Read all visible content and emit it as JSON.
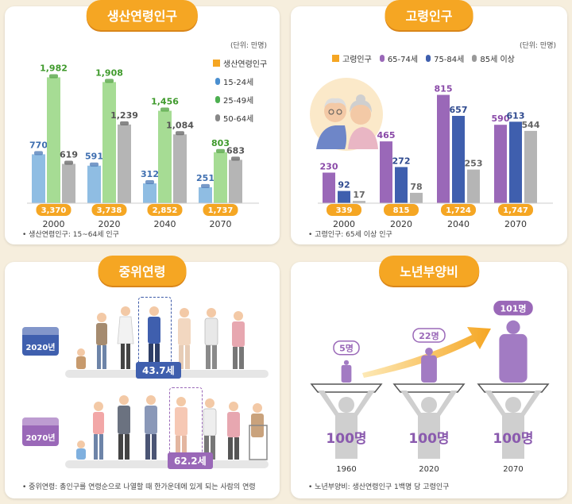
{
  "panels": {
    "working": {
      "title": "생산연령인구",
      "unit": "(단위: 만명)",
      "note": "• 생산연령인구: 15~64세 인구"
    },
    "elderly": {
      "title": "고령인구",
      "unit": "(단위: 만명)",
      "note": "• 고령인구: 65세 이상 인구"
    },
    "median": {
      "title": "중위연령",
      "note": "• 중위연령: 총인구를 연령순으로 나열할 때 한가운데에 있게 되는 사람의 연령",
      "rows": [
        {
          "year": "2020년",
          "age": "43.7세"
        },
        {
          "year": "2070년",
          "age": "62.2세"
        }
      ]
    },
    "dependency": {
      "title": "노년부양비",
      "note": "• 노년부양비: 생산연령인구 1백명 당 고령인구",
      "support": "100명"
    }
  },
  "colors": {
    "orange": "#f5a623",
    "blue": "#8fbde3",
    "green": "#a6dc94",
    "gray": "#b5b5b5",
    "purple": "#9a68b8",
    "navy": "#3f5fae",
    "dark_navy": "#2f4a8f",
    "light_purple": "#b58fd0"
  },
  "chart_data": [
    {
      "type": "bar",
      "title": "생산연령인구",
      "categories": [
        "2000",
        "2020",
        "2040",
        "2070"
      ],
      "total_label": "생산연령인구",
      "totals": [
        3370,
        3738,
        2852,
        1737
      ],
      "totals_text": [
        "3,370",
        "3,738",
        "2,852",
        "1,737"
      ],
      "series": [
        {
          "name": "15-24세",
          "values": [
            770,
            591,
            312,
            251
          ],
          "labels": [
            "770",
            "591",
            "312",
            "251"
          ],
          "color": "#8fbde3",
          "text_color": "#3f6fb0"
        },
        {
          "name": "25-49세",
          "values": [
            1982,
            1908,
            1456,
            803
          ],
          "labels": [
            "1,982",
            "1,908",
            "1,456",
            "803"
          ],
          "color": "#a6dc94",
          "text_color": "#3f9a2c"
        },
        {
          "name": "50-64세",
          "values": [
            619,
            1239,
            1084,
            683
          ],
          "labels": [
            "619",
            "1,239",
            "1,084",
            "683"
          ],
          "color": "#b5b5b5",
          "text_color": "#555555"
        }
      ],
      "ylim": [
        0,
        2100
      ]
    },
    {
      "type": "bar",
      "title": "고령인구",
      "categories": [
        "2000",
        "2020",
        "2040",
        "2070"
      ],
      "total_label": "고령인구",
      "totals": [
        339,
        815,
        1724,
        1747
      ],
      "totals_text": [
        "339",
        "815",
        "1,724",
        "1,747"
      ],
      "series": [
        {
          "name": "65-74세",
          "values": [
            230,
            465,
            815,
            590
          ],
          "labels": [
            "230",
            "465",
            "815",
            "590"
          ],
          "color": "#9a68b8",
          "text_color": "#8a4aa8"
        },
        {
          "name": "75-84세",
          "values": [
            92,
            272,
            657,
            613
          ],
          "labels": [
            "92",
            "272",
            "657",
            "613"
          ],
          "color": "#3f5fae",
          "text_color": "#2f4a8f"
        },
        {
          "name": "85세 이상",
          "values": [
            17,
            78,
            253,
            544
          ],
          "labels": [
            "17",
            "78",
            "253",
            "544"
          ],
          "color": "#b5b5b5",
          "text_color": "#666666"
        }
      ],
      "ylim": [
        0,
        860
      ]
    },
    {
      "type": "bar",
      "title": "노년부양비",
      "categories": [
        "1960",
        "2020",
        "2070"
      ],
      "values": [
        5,
        22,
        101
      ],
      "labels": [
        "5명",
        "22명",
        "101명"
      ]
    }
  ]
}
